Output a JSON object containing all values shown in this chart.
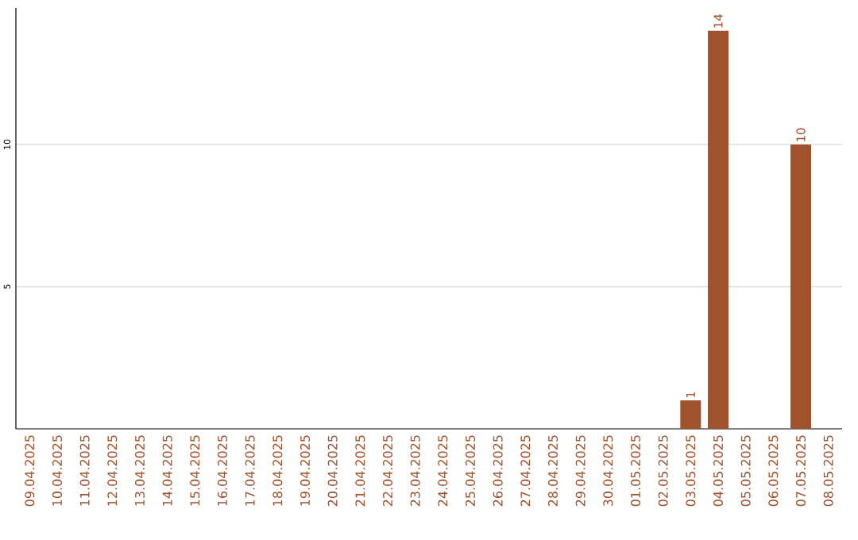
{
  "chart_data": {
    "type": "bar",
    "categories": [
      "09.04.2025",
      "10.04.2025",
      "11.04.2025",
      "12.04.2025",
      "13.04.2025",
      "14.04.2025",
      "15.04.2025",
      "16.04.2025",
      "17.04.2025",
      "18.04.2025",
      "19.04.2025",
      "20.04.2025",
      "21.04.2025",
      "22.04.2025",
      "23.04.2025",
      "24.04.2025",
      "25.04.2025",
      "26.04.2025",
      "27.04.2025",
      "28.04.2025",
      "29.04.2025",
      "30.04.2025",
      "01.05.2025",
      "02.05.2025",
      "03.05.2025",
      "04.05.2025",
      "05.05.2025",
      "06.05.2025",
      "07.05.2025",
      "08.05.2025"
    ],
    "values": [
      0,
      0,
      0,
      0,
      0,
      0,
      0,
      0,
      0,
      0,
      0,
      0,
      0,
      0,
      0,
      0,
      0,
      0,
      0,
      0,
      0,
      0,
      0,
      0,
      1,
      14,
      0,
      0,
      10,
      0
    ],
    "value_labels": [
      null,
      null,
      null,
      null,
      null,
      null,
      null,
      null,
      null,
      null,
      null,
      null,
      null,
      null,
      null,
      null,
      null,
      null,
      null,
      null,
      null,
      null,
      null,
      null,
      "1",
      "14",
      null,
      null,
      "10",
      null
    ],
    "color": "#a0522d",
    "ylim": [
      0,
      14.8
    ],
    "yticks": [
      5,
      10
    ],
    "grid": "y"
  }
}
